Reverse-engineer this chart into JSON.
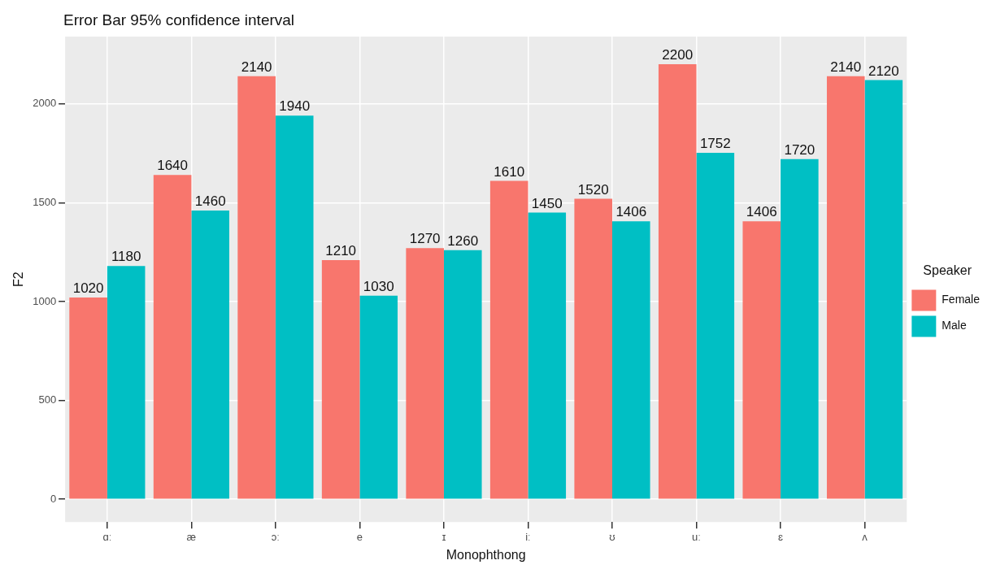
{
  "chart_data": {
    "type": "bar",
    "title": "Error Bar 95% confidence interval",
    "xlabel": "Monophthong",
    "ylabel": "F2",
    "legend_title": "Speaker",
    "categories": [
      "ɑː",
      "æ",
      "ɔː",
      "e",
      "ɪ",
      "iː",
      "ʊ",
      "uː",
      "ɛ",
      "ʌ"
    ],
    "series": [
      {
        "name": "Female",
        "color": "#f8766d",
        "values": [
          1020,
          1640,
          2140,
          1210,
          1270,
          1610,
          1520,
          2200,
          1406,
          2140
        ]
      },
      {
        "name": "Male",
        "color": "#00bfc4",
        "values": [
          1180,
          1460,
          1940,
          1030,
          1260,
          1450,
          1406,
          1752,
          1720,
          2120
        ]
      }
    ],
    "ylim": [
      -115,
      2340
    ],
    "yticks": [
      0,
      500,
      1000,
      1500,
      2000
    ],
    "grid": true,
    "legend": "right",
    "data_labels": true
  }
}
